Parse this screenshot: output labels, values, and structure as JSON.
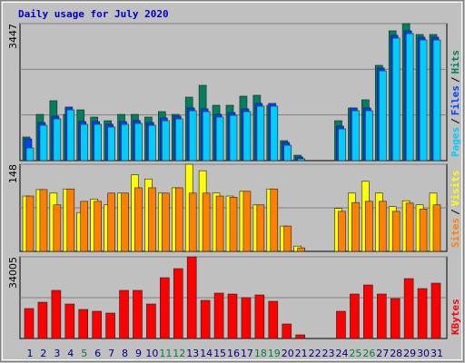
{
  "chart_data": [
    {
      "type": "bar",
      "title": "Daily usage for July 2020",
      "ylim": [
        0,
        3447
      ],
      "yticks": [
        3447
      ],
      "grid_divisions": 3,
      "separator": "/",
      "series": [
        {
          "name": "Pages",
          "color": "#00ccff",
          "values": [
            320,
            890,
            1050,
            1278,
            913,
            913,
            845,
            913,
            936,
            890,
            1004,
            1050,
            1256,
            1233,
            1096,
            1141,
            1233,
            1370,
            1370,
            388,
            46,
            0,
            0,
            799,
            1256,
            1256,
            2260,
            3082,
            3196,
            3036,
            3036
          ]
        },
        {
          "name": "Files",
          "color": "#0040ff",
          "values": [
            548,
            960,
            1120,
            1348,
            983,
            983,
            915,
            983,
            1006,
            960,
            1074,
            1120,
            1326,
            1303,
            1166,
            1211,
            1303,
            1440,
            1440,
            458,
            91,
            0,
            0,
            869,
            1326,
            1326,
            2330,
            3152,
            3266,
            3106,
            3106
          ]
        },
        {
          "name": "Hits",
          "color": "#00805c",
          "values": [
            594,
            1164,
            1507,
            1164,
            1278,
            1096,
            1004,
            1164,
            1164,
            1096,
            1233,
            1164,
            1598,
            1895,
            1393,
            1393,
            1621,
            1644,
            1393,
            502,
            137,
            0,
            0,
            1004,
            1324,
            1530,
            2397,
            3265,
            3447,
            3173,
            3173
          ]
        }
      ]
    },
    {
      "type": "bar",
      "ylim": [
        0,
        148
      ],
      "yticks": [
        148
      ],
      "grid_divisions": 2,
      "separator": "/",
      "series": [
        {
          "name": "Sites",
          "color": "#ff8000",
          "values": [
            94,
            105,
            79,
            106,
            85,
            85,
            99,
            99,
            108,
            108,
            99,
            108,
            99,
            99,
            94,
            92,
            102,
            79,
            106,
            43,
            6,
            0,
            0,
            68,
            83,
            85,
            85,
            68,
            82,
            72,
            79
          ]
        },
        {
          "name": "Visits",
          "color": "#ffff00",
          "values": [
            94,
            105,
            99,
            106,
            66,
            89,
            79,
            99,
            130,
            123,
            99,
            108,
            148,
            137,
            99,
            94,
            102,
            79,
            106,
            43,
            9,
            0,
            0,
            73,
            99,
            119,
            99,
            76,
            86,
            79,
            99
          ]
        }
      ]
    },
    {
      "type": "bar",
      "ylim": [
        0,
        34005
      ],
      "yticks": [
        34005
      ],
      "grid_divisions": 2,
      "categories": [
        "1",
        "2",
        "3",
        "4",
        "5",
        "6",
        "7",
        "8",
        "9",
        "10",
        "11",
        "12",
        "13",
        "14",
        "15",
        "16",
        "17",
        "18",
        "19",
        "20",
        "21",
        "22",
        "23",
        "24",
        "25",
        "26",
        "27",
        "28",
        "29",
        "30",
        "31"
      ],
      "category_colors": [
        "#000080",
        "#000080",
        "#000080",
        "#000080",
        "#008040",
        "#000080",
        "#000080",
        "#000080",
        "#000080",
        "#000080",
        "#008040",
        "#008040",
        "#000080",
        "#000080",
        "#000080",
        "#000080",
        "#000080",
        "#008040",
        "#008040",
        "#000080",
        "#000080",
        "#000080",
        "#000080",
        "#000080",
        "#008040",
        "#008040",
        "#000080",
        "#000080",
        "#000080",
        "#000080",
        "#000080"
      ],
      "series": [
        {
          "name": "KBytes",
          "color": "#ff0000",
          "values": [
            12467,
            15111,
            20022,
            14355,
            12089,
            11333,
            10578,
            20022,
            20022,
            14355,
            25311,
            29089,
            34005,
            15867,
            18889,
            18511,
            17000,
            18133,
            15489,
            6044,
            1511,
            0,
            0,
            11333,
            18511,
            22289,
            18511,
            16622,
            24933,
            20778,
            23044
          ]
        }
      ]
    }
  ]
}
